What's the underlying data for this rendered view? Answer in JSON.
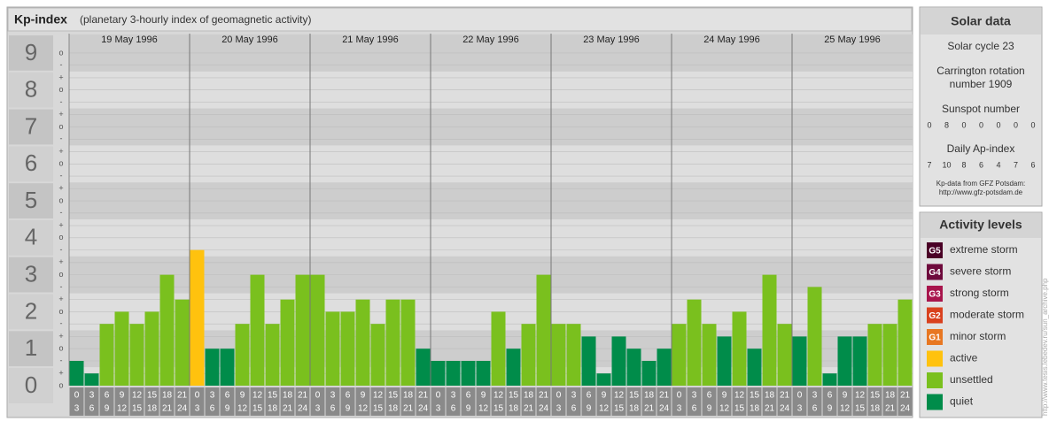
{
  "chart_data": {
    "type": "bar",
    "title": "Kp-index",
    "subtitle": "(planetary 3-hourly index of geomagnetic activity)",
    "days": [
      "19 May 1996",
      "20 May 1996",
      "21 May 1996",
      "22 May 1996",
      "23 May 1996",
      "24 May 1996",
      "25 May 1996"
    ],
    "hours": [
      [
        "0",
        "3"
      ],
      [
        "3",
        "6"
      ],
      [
        "6",
        "9"
      ],
      [
        "9",
        "12"
      ],
      [
        "12",
        "15"
      ],
      [
        "15",
        "18"
      ],
      [
        "18",
        "21"
      ],
      [
        "21",
        "24"
      ]
    ],
    "values": [
      0.67,
      0.33,
      1.67,
      2,
      1.67,
      2,
      3,
      2.33,
      3.67,
      1,
      1,
      1.67,
      3,
      1.67,
      2.33,
      3,
      3,
      2,
      2,
      2.33,
      1.67,
      2.33,
      2.33,
      1,
      0.67,
      0.67,
      0.67,
      0.67,
      2,
      1,
      1.67,
      3,
      1.67,
      1.67,
      1.33,
      0.33,
      1.33,
      1,
      0.67,
      1,
      1.67,
      2.33,
      1.67,
      1.33,
      2,
      1,
      3,
      1.67,
      1.33,
      2.67,
      0.33,
      1.33,
      1.33,
      1.67,
      1.67,
      2.33
    ],
    "colors": [
      "#008c4a",
      "#008c4a",
      "#7ac01e",
      "#7ac01e",
      "#7ac01e",
      "#7ac01e",
      "#7ac01e",
      "#7ac01e",
      "#ffc20e",
      "#008c4a",
      "#008c4a",
      "#7ac01e",
      "#7ac01e",
      "#7ac01e",
      "#7ac01e",
      "#7ac01e",
      "#7ac01e",
      "#7ac01e",
      "#7ac01e",
      "#7ac01e",
      "#7ac01e",
      "#7ac01e",
      "#7ac01e",
      "#008c4a",
      "#008c4a",
      "#008c4a",
      "#008c4a",
      "#008c4a",
      "#7ac01e",
      "#008c4a",
      "#7ac01e",
      "#7ac01e",
      "#7ac01e",
      "#7ac01e",
      "#008c4a",
      "#008c4a",
      "#008c4a",
      "#008c4a",
      "#008c4a",
      "#008c4a",
      "#7ac01e",
      "#7ac01e",
      "#7ac01e",
      "#008c4a",
      "#7ac01e",
      "#008c4a",
      "#7ac01e",
      "#7ac01e",
      "#008c4a",
      "#7ac01e",
      "#008c4a",
      "#008c4a",
      "#008c4a",
      "#7ac01e",
      "#7ac01e",
      "#7ac01e"
    ],
    "ylim": [
      0,
      9.5
    ],
    "yticks": [
      0,
      1,
      2,
      3,
      4,
      5,
      6,
      7,
      8,
      9
    ],
    "yminor_ticks": [
      {
        "value": 0,
        "label": "o"
      },
      {
        "value": 0.33,
        "label": "+"
      },
      {
        "value": 0.67,
        "label": "-"
      },
      {
        "value": 1,
        "label": "o"
      },
      {
        "value": 1.33,
        "label": "+"
      },
      {
        "value": 1.67,
        "label": "-"
      },
      {
        "value": 2,
        "label": "o"
      },
      {
        "value": 2.33,
        "label": "+"
      },
      {
        "value": 2.67,
        "label": "-"
      },
      {
        "value": 3,
        "label": "o"
      },
      {
        "value": 3.33,
        "label": "+"
      },
      {
        "value": 3.67,
        "label": "-"
      },
      {
        "value": 4,
        "label": "o"
      },
      {
        "value": 4.33,
        "label": "+"
      },
      {
        "value": 4.67,
        "label": "-"
      },
      {
        "value": 5,
        "label": "o"
      },
      {
        "value": 5.33,
        "label": "+"
      },
      {
        "value": 5.67,
        "label": "-"
      },
      {
        "value": 6,
        "label": "o"
      },
      {
        "value": 6.33,
        "label": "+"
      },
      {
        "value": 6.67,
        "label": "-"
      },
      {
        "value": 7,
        "label": "o"
      },
      {
        "value": 7.33,
        "label": "+"
      },
      {
        "value": 7.67,
        "label": "-"
      },
      {
        "value": 8,
        "label": "o"
      },
      {
        "value": 8.33,
        "label": "+"
      },
      {
        "value": 8.67,
        "label": "-"
      },
      {
        "value": 9,
        "label": "o"
      }
    ],
    "grid": true
  },
  "solar_data": {
    "title": "Solar data",
    "cycle": "Solar cycle 23",
    "carrington": [
      "Carrington rotation",
      "number 1909"
    ],
    "sunspot_label": "Sunspot number",
    "sunspot": [
      0,
      8,
      0,
      0,
      0,
      0,
      0
    ],
    "ap_label": "Daily Ap-index",
    "ap": [
      7,
      10,
      8,
      6,
      4,
      7,
      6
    ],
    "source": [
      "Kp-data from GFZ Potsdam:",
      "http://www.gfz-potsdam.de"
    ]
  },
  "activity_levels": {
    "title": "Activity levels",
    "items": [
      {
        "code": "G5",
        "label": "extreme storm",
        "color": "#4a0026"
      },
      {
        "code": "G4",
        "label": "severe storm",
        "color": "#6e0a3c"
      },
      {
        "code": "G3",
        "label": "strong storm",
        "color": "#a8154c"
      },
      {
        "code": "G2",
        "label": "moderate storm",
        "color": "#d9411e"
      },
      {
        "code": "G1",
        "label": "minor storm",
        "color": "#e87722"
      },
      {
        "label": "active",
        "color": "#ffc20e"
      },
      {
        "label": "unsettled",
        "color": "#7ac01e"
      },
      {
        "label": "quiet",
        "color": "#008c4a"
      }
    ]
  },
  "watermark": "http://www.tesis.lebedev.ru/sun_archive.php"
}
